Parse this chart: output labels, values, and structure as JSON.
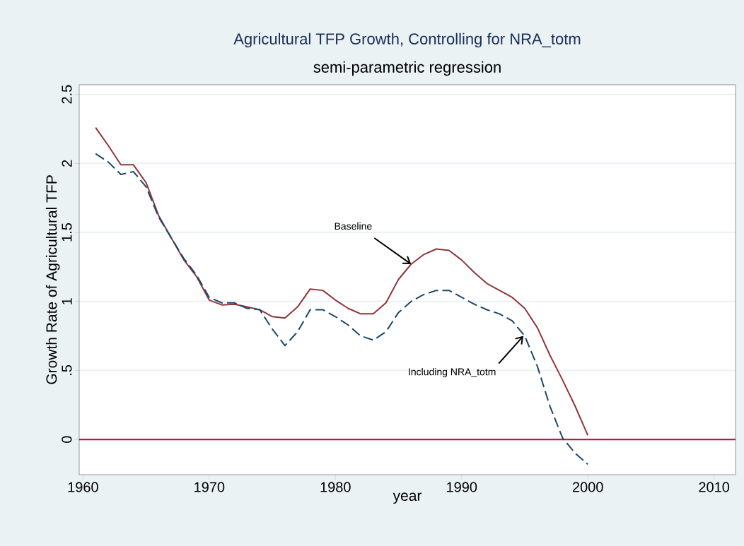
{
  "chart_data": {
    "type": "line",
    "title": "Agricultural TFP Growth, Controlling for NRA_totm",
    "subtitle": "semi-parametric regression",
    "xlabel": "year",
    "ylabel": "Growth Rate of Agricultural TFP",
    "x": [
      1961,
      1962,
      1963,
      1964,
      1965,
      1966,
      1967,
      1968,
      1969,
      1970,
      1971,
      1972,
      1973,
      1974,
      1975,
      1976,
      1977,
      1978,
      1979,
      1980,
      1981,
      1982,
      1983,
      1984,
      1985,
      1986,
      1987,
      1988,
      1989,
      1990,
      1991,
      1992,
      1993,
      1994,
      1995,
      1996,
      1997,
      1998,
      1999,
      2000
    ],
    "series": [
      {
        "color": "#90353b",
        "line_style": "solid",
        "values": [
          2.26,
          2.13,
          1.99,
          1.99,
          1.86,
          1.62,
          1.46,
          1.3,
          1.18,
          1.01,
          0.975,
          0.98,
          0.96,
          0.94,
          0.89,
          0.88,
          0.96,
          1.09,
          1.08,
          1.01,
          0.95,
          0.91,
          0.91,
          0.99,
          1.16,
          1.27,
          1.34,
          1.38,
          1.37,
          1.3,
          1.21,
          1.13,
          1.08,
          1.03,
          0.95,
          0.81,
          0.61,
          0.43,
          0.24,
          0.03
        ]
      },
      {
        "color": "#1a476f",
        "line_style": "dashed",
        "values": [
          2.07,
          2.01,
          1.92,
          1.94,
          1.83,
          1.61,
          1.46,
          1.31,
          1.19,
          1.03,
          0.99,
          0.99,
          0.95,
          0.94,
          0.8,
          0.68,
          0.78,
          0.94,
          0.94,
          0.89,
          0.83,
          0.75,
          0.72,
          0.78,
          0.92,
          1.0,
          1.05,
          1.08,
          1.08,
          1.03,
          0.98,
          0.94,
          0.91,
          0.86,
          0.75,
          0.53,
          0.24,
          0.01,
          -0.1,
          -0.18
        ]
      }
    ],
    "annotations": [
      {
        "text": "Baseline",
        "x": 1986,
        "y": 1.27
      },
      {
        "text": "Including NRA_totm",
        "x": 1994.9,
        "y": 0.75
      }
    ],
    "ref_lines": [
      {
        "axis": "y",
        "value": 0,
        "color": "#c10534"
      }
    ],
    "xlim": [
      1959.7,
      2011.7
    ],
    "ylim": [
      -0.255,
      2.57
    ],
    "xticks": [
      1960,
      1970,
      1980,
      1990,
      2000,
      2010
    ],
    "yticks": [
      0,
      {
        "value": 0.5,
        "label": ".5"
      },
      1,
      1.5,
      2,
      2.5
    ],
    "grid": "y",
    "marker": "none"
  }
}
